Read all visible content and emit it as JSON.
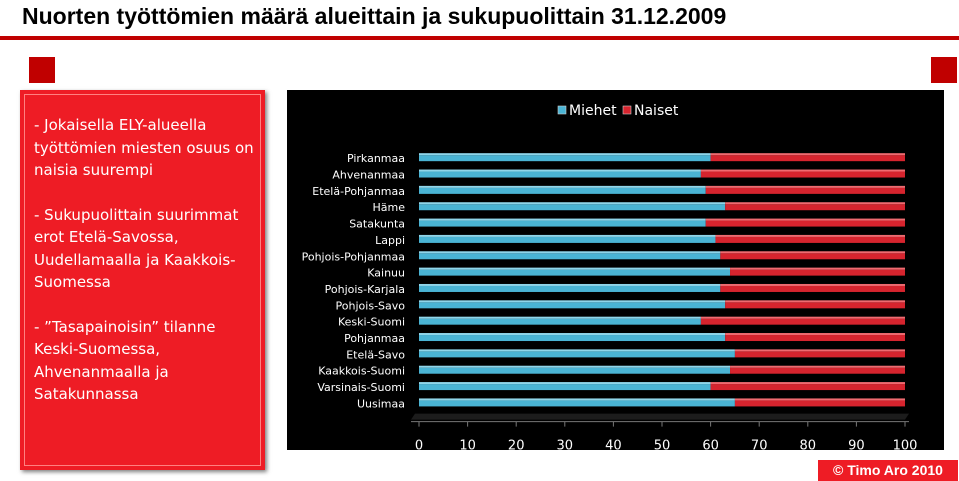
{
  "title": "Nuorten työttömien määrä alueittain ja sukupuolittain 31.12.2009",
  "textbox": {
    "bullets": [
      "- Jokaisella ELY-alueella työttömien miesten osuus on naisia suurempi",
      "- Sukupuolittain suurimmat erot Etelä-Savossa, Uudellamaalla ja Kaakkois-Suomessa",
      "- ”Tasapainoisin” tilanne Keski-Suomessa, Ahvenanmaalla ja Satakunnassa"
    ]
  },
  "copyright": "© Timo Aro 2010",
  "colors": {
    "miehet": "#4ab4d4",
    "naiset": "#d6242e",
    "accent": "#ee1c25"
  },
  "chart_data": {
    "type": "bar",
    "orientation": "horizontal",
    "stacked": "percent",
    "categories": [
      "Pirkanmaa",
      "Ahvenanmaa",
      "Etelä-Pohjanmaa",
      "Häme",
      "Satakunta",
      "Lappi",
      "Pohjois-Pohjanmaa",
      "Kainuu",
      "Pohjois-Karjala",
      "Pohjois-Savo",
      "Keski-Suomi",
      "Pohjanmaa",
      "Etelä-Savo",
      "Kaakkois-Suomi",
      "Varsinais-Suomi",
      "Uusimaa"
    ],
    "series": [
      {
        "name": "Miehet",
        "values": [
          60,
          58,
          59,
          63,
          59,
          61,
          62,
          64,
          62,
          63,
          58,
          63,
          65,
          64,
          60,
          65
        ]
      },
      {
        "name": "Naiset",
        "values": [
          40,
          42,
          41,
          37,
          41,
          39,
          38,
          36,
          38,
          37,
          42,
          37,
          35,
          36,
          40,
          35
        ]
      }
    ],
    "xticks": [
      "0",
      "10",
      "20",
      "30",
      "40",
      "50",
      "60",
      "70",
      "80",
      "90",
      "100"
    ],
    "xlim": [
      0,
      100
    ],
    "legend": "top",
    "grid": false
  }
}
